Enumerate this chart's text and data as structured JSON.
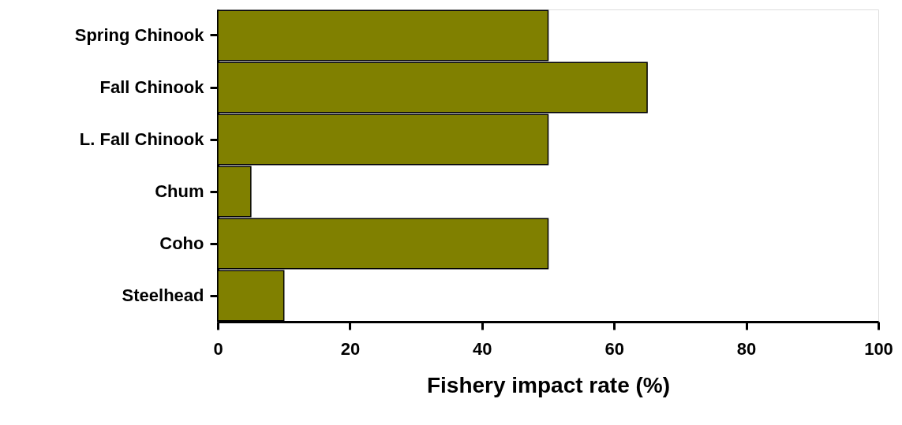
{
  "chart_data": {
    "type": "bar",
    "orientation": "horizontal",
    "xlabel": "Fishery impact rate (%)",
    "categories": [
      "Spring Chinook",
      "Fall Chinook",
      "L. Fall Chinook",
      "Chum",
      "Coho",
      "Steelhead"
    ],
    "values": [
      50,
      65,
      50,
      5,
      50,
      10
    ],
    "color": "#808000",
    "xlim": [
      0,
      100
    ],
    "xticks": [
      0,
      20,
      40,
      60,
      80,
      100
    ],
    "grid": false
  }
}
